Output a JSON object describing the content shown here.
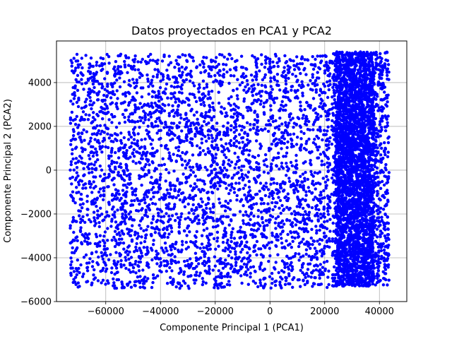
{
  "chart_data": {
    "type": "scatter",
    "title": "Datos proyectados en PCA1 y PCA2",
    "xlabel": "Componente Principal 1 (PCA1)",
    "ylabel": "Componente Principal 2 (PCA2)",
    "xlim": [
      -78000,
      50000
    ],
    "ylim": [
      -6000,
      5900
    ],
    "xticks": [
      -60000,
      -40000,
      -20000,
      0,
      20000,
      40000
    ],
    "xtick_labels": [
      "−60000",
      "−40000",
      "−20000",
      "0",
      "20000",
      "40000"
    ],
    "yticks": [
      -6000,
      -4000,
      -2000,
      0,
      2000,
      4000
    ],
    "ytick_labels": [
      "−6000",
      "−4000",
      "−2000",
      "0",
      "2000",
      "4000"
    ],
    "grid": true,
    "point_color": "#0000ff",
    "clusters": [
      {
        "x_range": [
          -73000,
          22000
        ],
        "y_range": [
          -5400,
          5300
        ],
        "approx_points": 3600
      },
      {
        "x_range": [
          22500,
          43500
        ],
        "y_range": [
          -5300,
          5400
        ],
        "approx_points": 1400
      },
      {
        "x_range": [
          24000,
          38000
        ],
        "y_range": [
          -5300,
          5400
        ],
        "approx_points": 2400
      }
    ]
  }
}
